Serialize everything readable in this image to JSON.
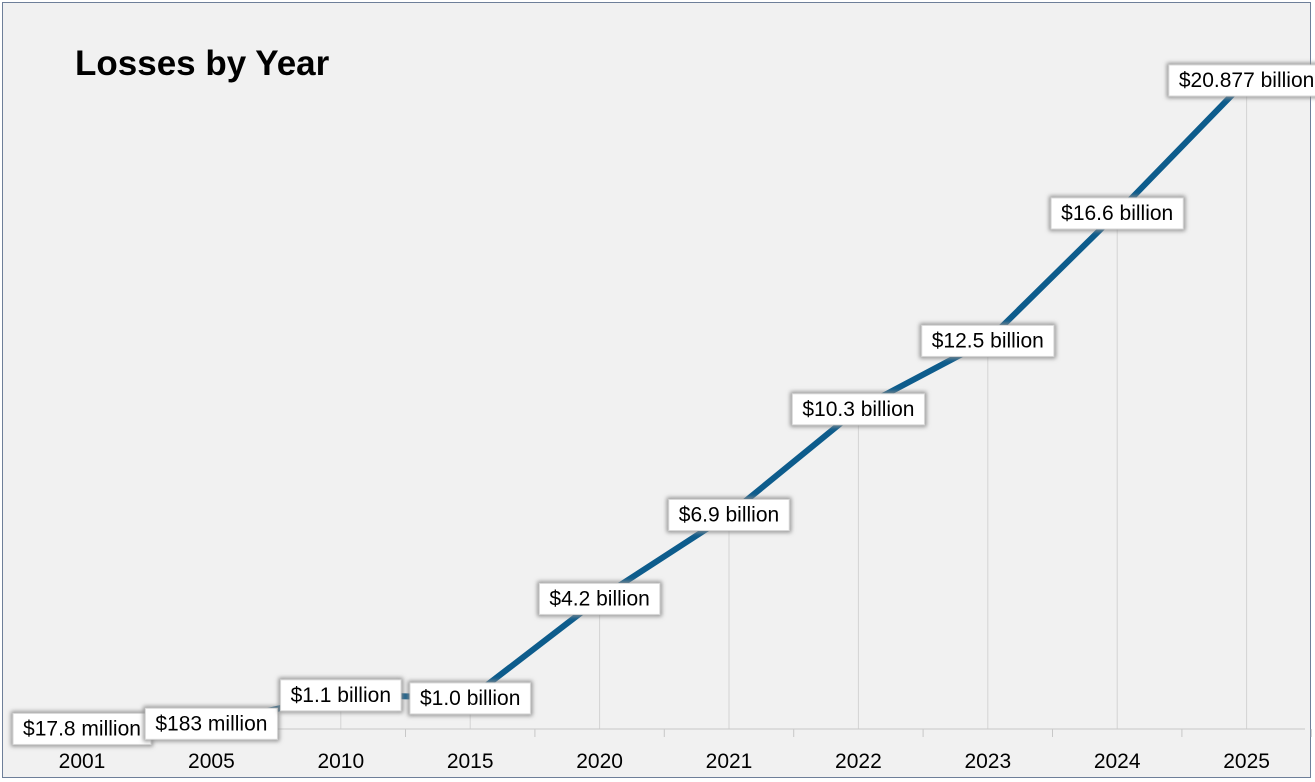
{
  "chart_data": {
    "type": "line",
    "title": "Losses by Year",
    "xlabel": "",
    "ylabel": "",
    "categories": [
      "2001",
      "2005",
      "2010",
      "2015",
      "2020",
      "2021",
      "2022",
      "2023",
      "2024",
      "2025"
    ],
    "values": [
      0.0178,
      0.183,
      1.1,
      1.0,
      4.2,
      6.9,
      10.3,
      12.5,
      16.6,
      20.877
    ],
    "value_unit": "billion USD",
    "data_labels": [
      "$17.8 million",
      "$183 million",
      "$1.1 billion",
      "$1.0 billion",
      "$4.2 billion",
      "$6.9 billion",
      "$10.3 billion",
      "$12.5 billion",
      "$16.6 billion",
      "$20.877 billion"
    ],
    "ylim": [
      0,
      22
    ],
    "grid": "vertical",
    "legend": "none",
    "colors": {
      "line": "#0d5c8c",
      "background": "#f1f1f1",
      "border": "#6e7f99",
      "gridline": "#d4d4d4"
    }
  }
}
